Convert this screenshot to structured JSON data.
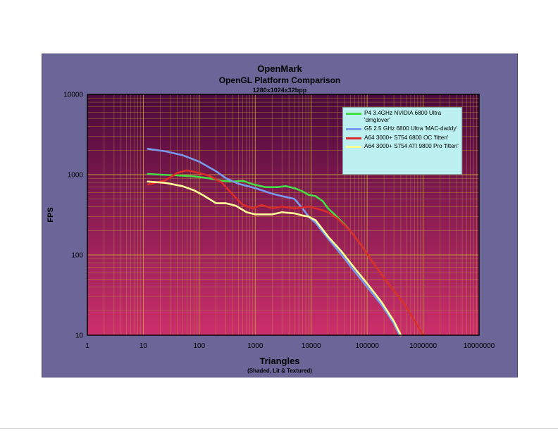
{
  "colors": {
    "frame_bg": "#6b6598",
    "plot_bg_top": "#4a0a3c",
    "plot_bg_bottom": "#cc2f6a",
    "grid": "#c8a53a",
    "legend_bg": "#bdf1f1"
  },
  "chart_data": {
    "type": "line",
    "title": "OpenMark",
    "subtitle": "OpenGL Platform Comparison",
    "subtitle2": "1280x1024x32bpp",
    "xlabel": "Triangles",
    "xlabel_sub": "(Shaded, Lit & Textured)",
    "ylabel": "FPS",
    "x_scale": "log",
    "y_scale": "log",
    "xlim": [
      1,
      10000000
    ],
    "ylim": [
      10,
      10000
    ],
    "x_ticks": [
      "1",
      "10",
      "100",
      "1000",
      "10000",
      "100000",
      "1000000",
      "10000000"
    ],
    "y_ticks": [
      "10",
      "100",
      "1000",
      "10000"
    ],
    "grid": true,
    "legend_position": "top-right",
    "series": [
      {
        "name": "P4 3.4GHz NVIDIA 6800 Ultra 'dmglover'",
        "color": "#44dd44",
        "points": [
          [
            12,
            1020
          ],
          [
            20,
            1000
          ],
          [
            40,
            980
          ],
          [
            80,
            950
          ],
          [
            150,
            900
          ],
          [
            250,
            840
          ],
          [
            400,
            820
          ],
          [
            600,
            840
          ],
          [
            900,
            760
          ],
          [
            1500,
            700
          ],
          [
            2500,
            700
          ],
          [
            3500,
            720
          ],
          [
            5000,
            680
          ],
          [
            7000,
            620
          ],
          [
            9000,
            560
          ],
          [
            12000,
            540
          ],
          [
            16000,
            470
          ],
          [
            20000,
            380
          ],
          [
            25000,
            330
          ],
          [
            35000,
            260
          ],
          [
            50000,
            200
          ],
          [
            80000,
            130
          ],
          [
            120000,
            85
          ],
          [
            200000,
            52
          ],
          [
            300000,
            36
          ],
          [
            450000,
            25
          ],
          [
            600000,
            18
          ],
          [
            800000,
            13
          ],
          [
            1000000,
            10
          ]
        ]
      },
      {
        "name": "G5 2.5 GHz 6800 Ultra 'MAC-daddy'",
        "color": "#7799ee",
        "points": [
          [
            12,
            2100
          ],
          [
            25,
            1950
          ],
          [
            50,
            1750
          ],
          [
            100,
            1450
          ],
          [
            200,
            1100
          ],
          [
            300,
            900
          ],
          [
            500,
            770
          ],
          [
            1000,
            680
          ],
          [
            2000,
            580
          ],
          [
            3000,
            540
          ],
          [
            5000,
            500
          ],
          [
            7000,
            380
          ],
          [
            9000,
            300
          ],
          [
            12000,
            250
          ],
          [
            20000,
            160
          ],
          [
            35000,
            100
          ],
          [
            60000,
            62
          ],
          [
            100000,
            40
          ],
          [
            180000,
            24
          ],
          [
            300000,
            14
          ],
          [
            380000,
            10
          ]
        ]
      },
      {
        "name": "A64 3000+ S754 6800 OC 'fitten'",
        "color": "#dd2a2a",
        "points": [
          [
            12,
            750
          ],
          [
            25,
            850
          ],
          [
            40,
            1050
          ],
          [
            60,
            1130
          ],
          [
            90,
            1070
          ],
          [
            150,
            970
          ],
          [
            250,
            800
          ],
          [
            400,
            560
          ],
          [
            600,
            420
          ],
          [
            900,
            380
          ],
          [
            1300,
            420
          ],
          [
            2000,
            380
          ],
          [
            3000,
            400
          ],
          [
            5000,
            380
          ],
          [
            7000,
            390
          ],
          [
            9000,
            400
          ],
          [
            12000,
            380
          ],
          [
            16000,
            360
          ],
          [
            20000,
            340
          ],
          [
            30000,
            280
          ],
          [
            50000,
            200
          ],
          [
            80000,
            130
          ],
          [
            120000,
            85
          ],
          [
            200000,
            52
          ],
          [
            300000,
            36
          ],
          [
            450000,
            25
          ],
          [
            600000,
            18
          ],
          [
            800000,
            13
          ],
          [
            1000000,
            10
          ]
        ]
      },
      {
        "name": "A64 3000+ S754 ATI 9800 Pro 'fitten'",
        "color": "#ffff99",
        "points": [
          [
            12,
            820
          ],
          [
            25,
            790
          ],
          [
            50,
            720
          ],
          [
            80,
            640
          ],
          [
            120,
            550
          ],
          [
            200,
            440
          ],
          [
            300,
            440
          ],
          [
            450,
            410
          ],
          [
            700,
            340
          ],
          [
            1000,
            320
          ],
          [
            2000,
            320
          ],
          [
            3000,
            340
          ],
          [
            5000,
            330
          ],
          [
            7000,
            310
          ],
          [
            9000,
            300
          ],
          [
            12000,
            270
          ],
          [
            20000,
            170
          ],
          [
            35000,
            110
          ],
          [
            60000,
            68
          ],
          [
            100000,
            44
          ],
          [
            180000,
            26
          ],
          [
            300000,
            15
          ],
          [
            400000,
            10
          ]
        ]
      }
    ]
  }
}
